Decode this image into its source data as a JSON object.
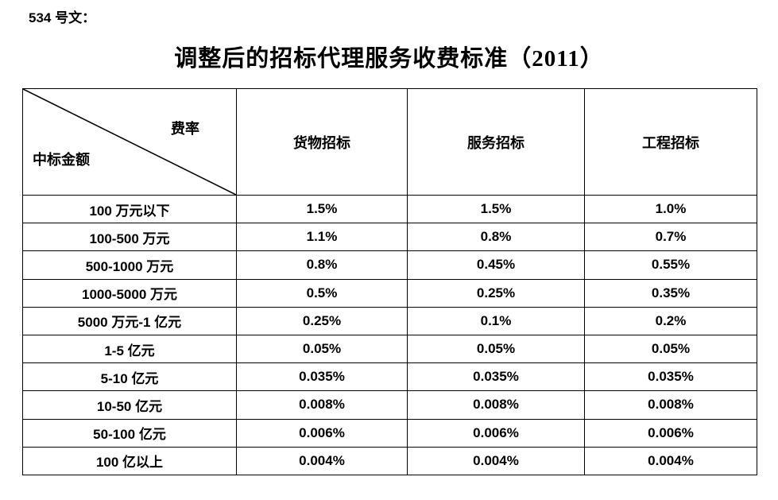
{
  "page": {
    "doc_number": "534 号文：",
    "title": "调整后的招标代理服务收费标准（2011）"
  },
  "table": {
    "corner": {
      "top_right": "费率",
      "bottom_left": "中标金额"
    },
    "columns": [
      "货物招标",
      "服务招标",
      "工程招标"
    ],
    "rows": [
      {
        "label": "100 万元以下",
        "values": [
          "1.5%",
          "1.5%",
          "1.0%"
        ]
      },
      {
        "label": "100-500 万元",
        "values": [
          "1.1%",
          "0.8%",
          "0.7%"
        ]
      },
      {
        "label": "500-1000 万元",
        "values": [
          "0.8%",
          "0.45%",
          "0.55%"
        ]
      },
      {
        "label": "1000-5000 万元",
        "values": [
          "0.5%",
          "0.25%",
          "0.35%"
        ]
      },
      {
        "label": "5000 万元-1 亿元",
        "values": [
          "0.25%",
          "0.1%",
          "0.2%"
        ]
      },
      {
        "label": "1-5 亿元",
        "values": [
          "0.05%",
          "0.05%",
          "0.05%"
        ]
      },
      {
        "label": "5-10 亿元",
        "values": [
          "0.035%",
          "0.035%",
          "0.035%"
        ]
      },
      {
        "label": "10-50 亿元",
        "values": [
          "0.008%",
          "0.008%",
          "0.008%"
        ]
      },
      {
        "label": "50-100 亿元",
        "values": [
          "0.006%",
          "0.006%",
          "0.006%"
        ]
      },
      {
        "label": "100 亿以上",
        "values": [
          "0.004%",
          "0.004%",
          "0.004%"
        ]
      }
    ],
    "border_color": "#000000",
    "background_color": "#ffffff"
  }
}
